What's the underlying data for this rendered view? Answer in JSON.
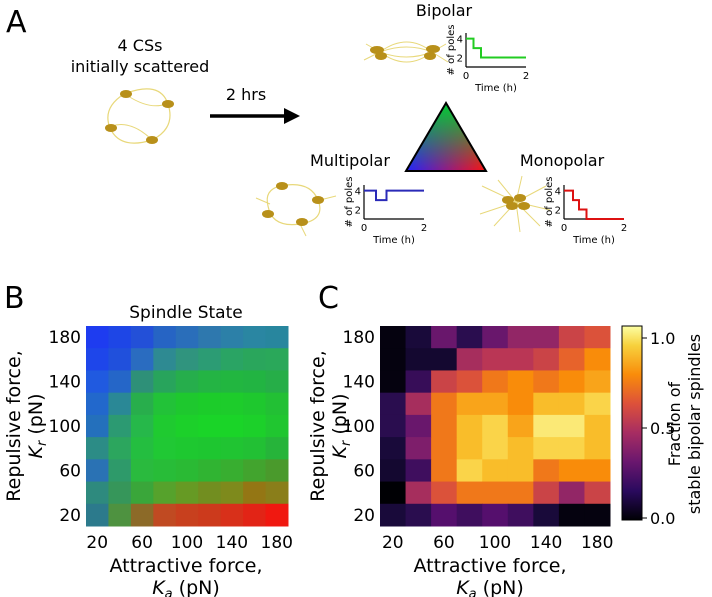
{
  "panels": {
    "a": {
      "letter": "A",
      "initial_label_line1": "4 CSs",
      "initial_label_line2": "initially scattered",
      "arrow_label": "2 hrs",
      "outcomes": [
        {
          "name": "Bipolar",
          "color": "#22cc22",
          "ylabel": "# of poles",
          "xlabel": "Time (h)",
          "yticks": [
            "4",
            "2"
          ],
          "xticks": [
            "0",
            "2"
          ],
          "poles_over_time": [
            [
              0,
              4
            ],
            [
              0.25,
              3
            ],
            [
              0.5,
              2
            ],
            [
              2,
              2
            ]
          ]
        },
        {
          "name": "Multipolar",
          "color": "#2a2ab8",
          "ylabel": "# of poles",
          "xlabel": "Time (h)",
          "yticks": [
            "4",
            "2"
          ],
          "xticks": [
            "0",
            "2"
          ],
          "poles_over_time": [
            [
              0,
              4
            ],
            [
              0.4,
              3
            ],
            [
              0.75,
              4
            ],
            [
              2,
              4
            ]
          ]
        },
        {
          "name": "Monopolar",
          "color": "#dd1111",
          "ylabel": "# of poles",
          "xlabel": "Time (h)",
          "yticks": [
            "4",
            "2"
          ],
          "xticks": [
            "0",
            "2"
          ],
          "poles_over_time": [
            [
              0,
              4
            ],
            [
              0.3,
              3
            ],
            [
              0.5,
              2
            ],
            [
              0.75,
              1
            ],
            [
              2,
              1
            ]
          ]
        }
      ],
      "triangle_colors": {
        "top": "#00cc33",
        "left": "#2222ff",
        "right": "#ff1111"
      }
    },
    "b": {
      "letter": "B",
      "title": "Spindle State",
      "xlabel_line1": "Attractive force,",
      "xlabel_line2_symbol": "K",
      "xlabel_line2_sub": "a",
      "xlabel_line2_unit": " (pN)",
      "ylabel_line1": "Repulsive force,",
      "ylabel_line2_symbol": "K",
      "ylabel_line2_sub": "r",
      "ylabel_line2_unit": " (pN)",
      "xticks": [
        "20",
        "60",
        "100",
        "140",
        "180"
      ],
      "yticks": [
        "180",
        "140",
        "100",
        "60",
        "20"
      ]
    },
    "c": {
      "letter": "C",
      "xlabel_line1": "Attractive force,",
      "xlabel_line2_symbol": "K",
      "xlabel_line2_sub": "a",
      "xlabel_line2_unit": " (pN)",
      "ylabel_line1": "Repulsive force,",
      "ylabel_line2_symbol": "K",
      "ylabel_line2_sub": "r",
      "ylabel_line2_unit": " (pN)",
      "xticks": [
        "20",
        "60",
        "100",
        "140",
        "180"
      ],
      "yticks": [
        "180",
        "140",
        "100",
        "60",
        "20"
      ],
      "colorbar_label_line1": "Fraction of",
      "colorbar_label_line2": "stable bipolar spindles",
      "colorbar_ticks": [
        "1.0",
        "0.5",
        "0.0"
      ]
    }
  },
  "chart_data": [
    {
      "type": "heatmap",
      "title": "Spindle State",
      "xlabel": "Attractive force, Ka (pN)",
      "ylabel": "Repulsive force, Kr (pN)",
      "x": [
        20,
        40,
        60,
        80,
        100,
        120,
        140,
        160,
        180
      ],
      "y": [
        180,
        160,
        140,
        120,
        100,
        80,
        60,
        40,
        20
      ],
      "values": [
        [
          "#1e3cf0",
          "#1e46e6",
          "#2350d8",
          "#2664c4",
          "#2a6eba",
          "#2e78ae",
          "#2c80a8",
          "#2a86a2",
          "#28869e"
        ],
        [
          "#1e46ea",
          "#2050dc",
          "#2a6cc0",
          "#2e8a92",
          "#30947e",
          "#2c9c74",
          "#2aa464",
          "#2aa65c",
          "#2aa85a"
        ],
        [
          "#205ae0",
          "#2566c8",
          "#2e9078",
          "#28a45c",
          "#26ae4c",
          "#24b444",
          "#22b640",
          "#22b442",
          "#26ae48"
        ],
        [
          "#2268cc",
          "#2a8896",
          "#28ae4c",
          "#22c238",
          "#1ec82e",
          "#1ccc2a",
          "#1dcc2b",
          "#1ec82e",
          "#22c034"
        ],
        [
          "#2470bc",
          "#2c9a72",
          "#26b84a",
          "#1fca30",
          "#1cd02a",
          "#1ad428",
          "#1ad428",
          "#1cd02a",
          "#20c630"
        ],
        [
          "#2c8c86",
          "#2ca65e",
          "#24be40",
          "#20c834",
          "#1ec830",
          "#1ec630",
          "#20c432",
          "#22c034",
          "#26b43a"
        ],
        [
          "#2a72b4",
          "#2e9a6a",
          "#2aba3e",
          "#28bc38",
          "#2aba34",
          "#30b432",
          "#38ae30",
          "#42a42e",
          "#4a9a2c"
        ],
        [
          "#2e8a7e",
          "#36965a",
          "#3aa63a",
          "#56a22c",
          "#669a24",
          "#728e20",
          "#7e8a1c",
          "#947614",
          "#8a7e1a"
        ],
        [
          "#2c7a8c",
          "#4e9240",
          "#8c6a28",
          "#c04a22",
          "#c8401e",
          "#cc3a1c",
          "#d8301a",
          "#e22416",
          "#f01810"
        ]
      ]
    },
    {
      "type": "heatmap",
      "title": "",
      "xlabel": "Attractive force, Ka (pN)",
      "ylabel": "Repulsive force, Kr (pN)",
      "colorbar_label": "Fraction of stable bipolar spindles",
      "colorbar_range": [
        0.0,
        1.0
      ],
      "x": [
        20,
        40,
        60,
        80,
        100,
        120,
        140,
        160,
        180
      ],
      "y": [
        180,
        160,
        140,
        120,
        100,
        80,
        60,
        40,
        20
      ],
      "values": [
        [
          0.02,
          0.1,
          0.3,
          0.15,
          0.3,
          0.4,
          0.4,
          0.55,
          0.6
        ],
        [
          0.02,
          0.08,
          0.08,
          0.45,
          0.5,
          0.5,
          0.55,
          0.65,
          0.75
        ],
        [
          0.02,
          0.18,
          0.55,
          0.6,
          0.7,
          0.75,
          0.7,
          0.75,
          0.8
        ],
        [
          0.15,
          0.45,
          0.7,
          0.8,
          0.8,
          0.75,
          0.85,
          0.85,
          0.9
        ],
        [
          0.15,
          0.3,
          0.7,
          0.85,
          0.9,
          0.8,
          0.95,
          0.95,
          0.85
        ],
        [
          0.1,
          0.35,
          0.7,
          0.85,
          0.9,
          0.85,
          0.9,
          0.9,
          0.85
        ],
        [
          0.08,
          0.2,
          0.7,
          0.9,
          0.85,
          0.85,
          0.7,
          0.75,
          0.75
        ],
        [
          0.0,
          0.45,
          0.6,
          0.7,
          0.7,
          0.7,
          0.55,
          0.4,
          0.55
        ],
        [
          0.1,
          0.15,
          0.25,
          0.2,
          0.25,
          0.2,
          0.1,
          0.02,
          0.02
        ]
      ]
    }
  ]
}
